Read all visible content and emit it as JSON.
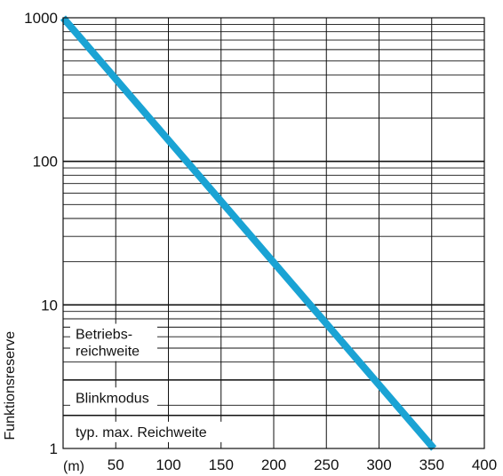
{
  "chart_data": {
    "type": "line",
    "title": "",
    "xlabel": "",
    "ylabel": "Funktionsreserve",
    "x_unit_label": "(m)",
    "xscale": "linear",
    "yscale": "log",
    "xlim": [
      0,
      400
    ],
    "ylim": [
      1,
      1000
    ],
    "x_ticks": [
      50,
      100,
      150,
      200,
      250,
      300,
      350,
      400
    ],
    "x_tick_labels": [
      "50",
      "100",
      "150",
      "200",
      "250",
      "300",
      "350",
      "400"
    ],
    "y_ticks": [
      1,
      10,
      100,
      1000
    ],
    "y_tick_labels": [
      "1",
      "10",
      "100",
      "1000"
    ],
    "grid": true,
    "series": [
      {
        "x": [
          0,
          352
        ],
        "y": [
          1000,
          1
        ],
        "color": "#1aa3d4"
      }
    ],
    "zones": [
      {
        "label_lines": [
          "typ. max. Reichweite"
        ],
        "y_from": 1,
        "y_to": 1.7
      },
      {
        "label_lines": [
          "Blinkmodus"
        ],
        "y_from": 1.7,
        "y_to": 3
      },
      {
        "label_lines": [
          "Betriebs-",
          "reichweite"
        ],
        "y_from": 3,
        "y_to": 10
      }
    ],
    "grid_color": "#111111",
    "border_color": "#111111"
  }
}
